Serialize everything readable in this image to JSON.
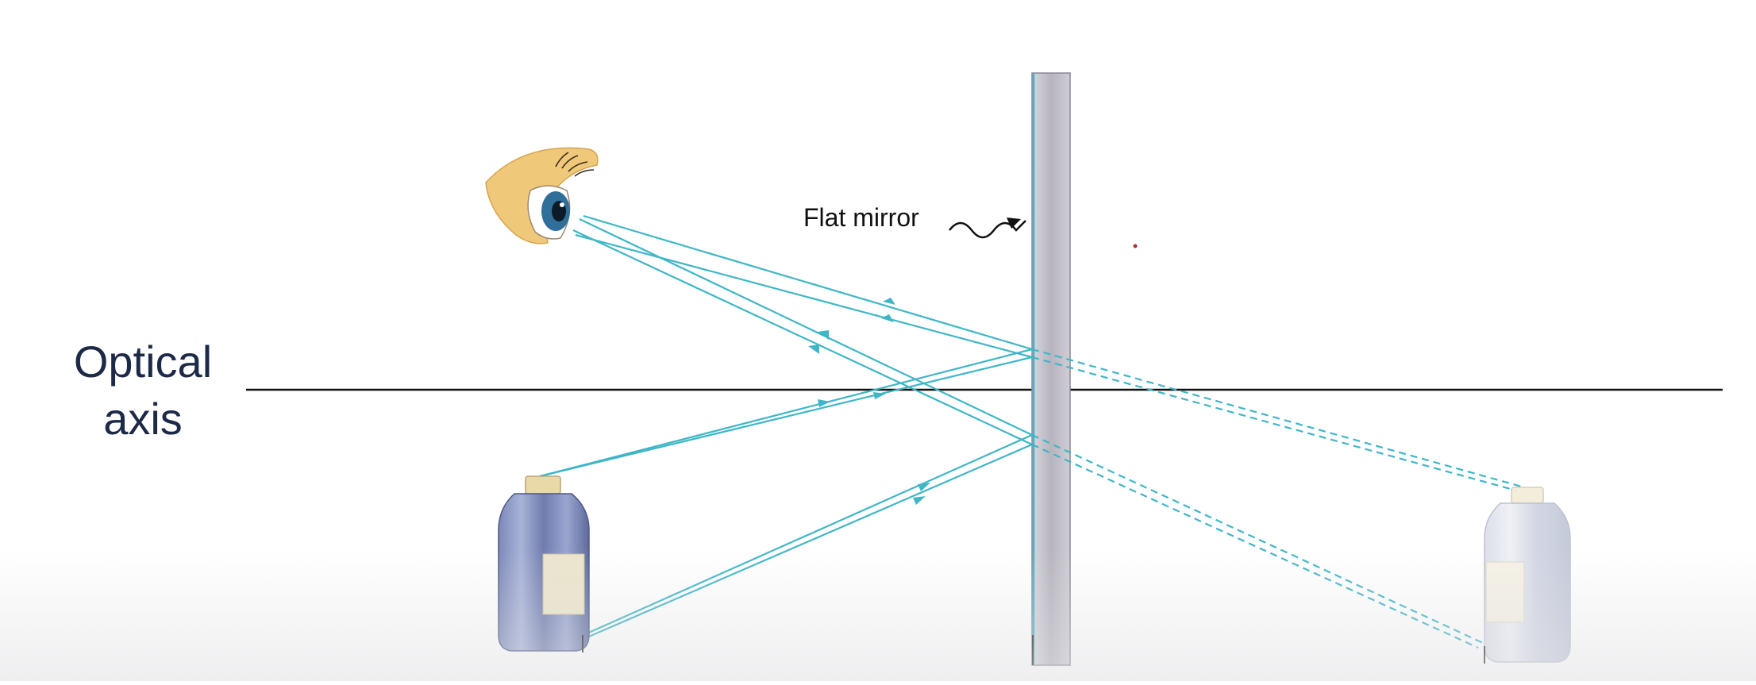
{
  "labels": {
    "optical_axis_line1": "Optical",
    "optical_axis_line2": "axis",
    "mirror": "Flat mirror"
  },
  "icons": {
    "eye": "eye-icon",
    "object": "bottle-object-icon",
    "image": "bottle-image-icon"
  },
  "colors": {
    "ray": "#3fb6c6",
    "virtual_ray": "#3fb6c6",
    "mirror_fill": "#b9b6c1",
    "axis": "#111111",
    "label": "#1c2a48"
  }
}
